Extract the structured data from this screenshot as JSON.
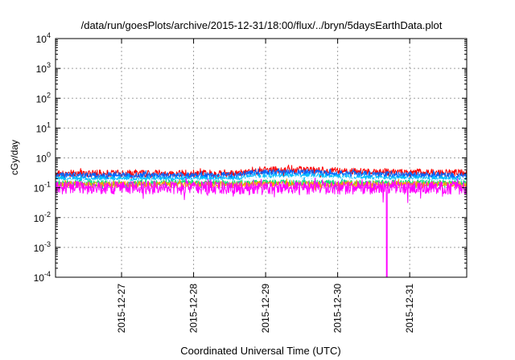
{
  "chart_data": {
    "type": "line",
    "title": "/data/run/goesPlots/archive/2015-12-31/18:00/flux/../bryn/5daysEarthData.plot",
    "xlabel": "Coordinated Universal Time (UTC)",
    "ylabel": "cGy/day",
    "yscale": "log",
    "ylim": [
      0.0001,
      10000
    ],
    "xlim": [
      "2015-12-26T02:00",
      "2015-12-31T19:00"
    ],
    "y_tick_labels": [
      {
        "base": "10",
        "exp": "-4"
      },
      {
        "base": "10",
        "exp": "-3"
      },
      {
        "base": "10",
        "exp": "-2"
      },
      {
        "base": "10",
        "exp": "-1"
      },
      {
        "base": "10",
        "exp": "0"
      },
      {
        "base": "10",
        "exp": "1"
      },
      {
        "base": "10",
        "exp": "2"
      },
      {
        "base": "10",
        "exp": "3"
      },
      {
        "base": "10",
        "exp": "4"
      }
    ],
    "x_tick_labels": [
      "2015-12-27",
      "2015-12-28",
      "2015-12-29",
      "2015-12-30",
      "2015-12-31"
    ],
    "x_tick_dates": [
      "2015-12-27T00:00",
      "2015-12-28T00:00",
      "2015-12-29T00:00",
      "2015-12-30T00:00",
      "2015-12-31T00:00"
    ],
    "grid": true,
    "legend": "none",
    "series": [
      {
        "color": "#ff0000",
        "baseline": 0.3,
        "spread": 0.12,
        "segments": [
          [
            "2015-12-26T02:00",
            0.3
          ],
          [
            "2015-12-28T14:00",
            0.3
          ],
          [
            "2015-12-28T20:00",
            0.38
          ],
          [
            "2015-12-29T12:00",
            0.4
          ],
          [
            "2015-12-30T06:00",
            0.35
          ],
          [
            "2015-12-31T19:00",
            0.31
          ]
        ]
      },
      {
        "color": "#0066ff",
        "baseline": 0.26,
        "spread": 0.1,
        "segments": [
          [
            "2015-12-26T02:00",
            0.26
          ],
          [
            "2015-12-28T14:00",
            0.26
          ],
          [
            "2015-12-28T20:00",
            0.32
          ],
          [
            "2015-12-29T12:00",
            0.33
          ],
          [
            "2015-12-30T06:00",
            0.29
          ],
          [
            "2015-12-31T19:00",
            0.26
          ]
        ]
      },
      {
        "color": "#00bfff",
        "baseline": 0.2,
        "spread": 0.09,
        "segments": [
          [
            "2015-12-26T02:00",
            0.2
          ],
          [
            "2015-12-28T14:00",
            0.2
          ],
          [
            "2015-12-28T20:00",
            0.24
          ],
          [
            "2015-12-29T12:00",
            0.25
          ],
          [
            "2015-12-30T06:00",
            0.22
          ],
          [
            "2015-12-31T19:00",
            0.2
          ]
        ]
      },
      {
        "color": "#ffffff",
        "baseline": 0.17,
        "spread": 0.06,
        "segments": [
          [
            "2015-12-26T02:00",
            0.17
          ],
          [
            "2015-12-28T14:00",
            0.17
          ],
          [
            "2015-12-28T20:00",
            0.21
          ],
          [
            "2015-12-29T12:00",
            0.22
          ],
          [
            "2015-12-30T06:00",
            0.19
          ],
          [
            "2015-12-31T19:00",
            0.17
          ]
        ]
      },
      {
        "color": "#00e07a",
        "baseline": 0.145,
        "spread": 0.1,
        "segments": [
          [
            "2015-12-26T02:00",
            0.145
          ],
          [
            "2015-12-31T19:00",
            0.145
          ]
        ]
      },
      {
        "color": "#ffa000",
        "baseline": 0.13,
        "spread": 0.1,
        "segments": [
          [
            "2015-12-26T02:00",
            0.13
          ],
          [
            "2015-12-31T19:00",
            0.13
          ]
        ]
      },
      {
        "color": "#ff00ff",
        "baseline": 0.1,
        "spread": 0.22,
        "segments": [
          [
            "2015-12-26T02:00",
            0.1
          ],
          [
            "2015-12-31T19:00",
            0.1
          ]
        ],
        "dropout": [
          "2015-12-30T16:15",
          "2015-12-30T16:30"
        ]
      }
    ]
  }
}
